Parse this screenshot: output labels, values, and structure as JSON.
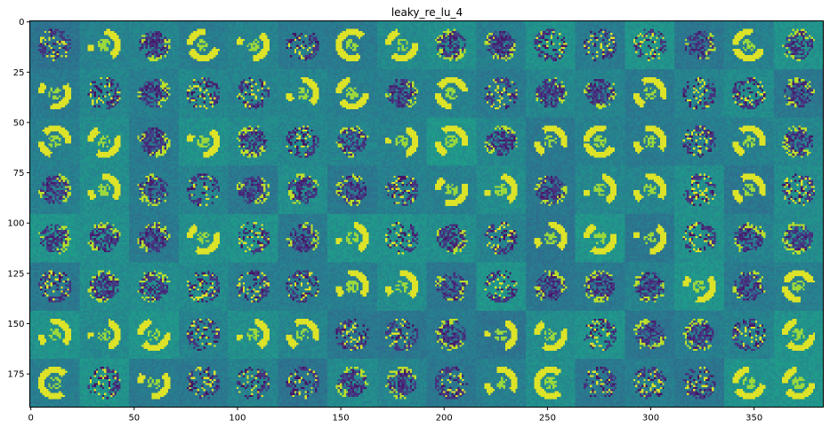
{
  "chart_data": {
    "type": "heatmap",
    "title": "leaky_re_lu_4",
    "colormap": "viridis",
    "grid": false,
    "xlim": [
      0,
      384
    ],
    "ylim": [
      192,
      0
    ],
    "x_ticks": [
      0,
      50,
      100,
      150,
      200,
      250,
      300,
      350
    ],
    "y_ticks": [
      0,
      25,
      50,
      75,
      100,
      125,
      150,
      175
    ],
    "tile_rows": 8,
    "tile_cols": 16,
    "tile_size": 24,
    "description_values": "128 activation feature maps (24x24 each) tiled 8 rows by 16 columns"
  }
}
